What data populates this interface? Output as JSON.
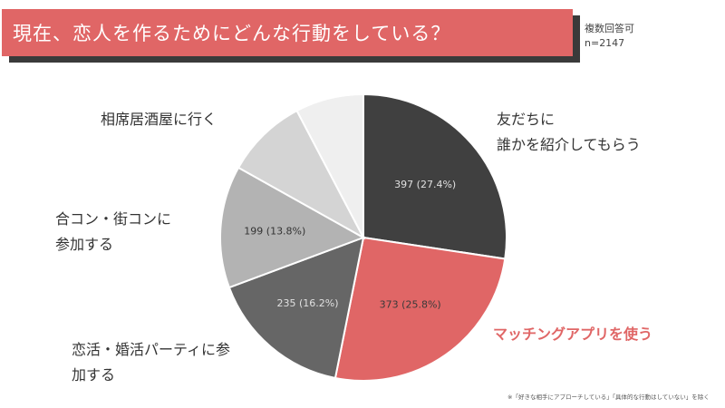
{
  "header": {
    "title": "現在、恋人を作るためにどんな行動をしている？",
    "note_multi": "複数回答可",
    "note_n": "n=2147"
  },
  "footnote": "※「好きな相手にアプローチしている」「具体的な行動はしていない」を除く",
  "colors": {
    "accent": "#e06666",
    "shadow": "#3a3a3a"
  },
  "chart_data": {
    "type": "pie",
    "title": "現在、恋人を作るためにどんな行動をしている？",
    "total": 2147,
    "start": "12 o'clock, clockwise",
    "slices": [
      {
        "category": "友だちに誰かを紹介してもらう",
        "label_lines": [
          "友だちに",
          "誰かを紹介してもらう"
        ],
        "value": 397,
        "percent": 27.4,
        "data_label": "397 (27.4%)",
        "color": "#404040",
        "label_color": "#e0e0e0",
        "highlight": false
      },
      {
        "category": "マッチングアプリを使う",
        "label_lines": [
          "マッチングアプリを使う"
        ],
        "value": 373,
        "percent": 25.8,
        "data_label": "373 (25.8%)",
        "color": "#e06666",
        "label_color": "#3a3a3a",
        "highlight": true
      },
      {
        "category": "恋活・婚活パーティに参加する",
        "label_lines": [
          "恋活・婚活パーティに参",
          "加する"
        ],
        "value": 235,
        "percent": 16.2,
        "data_label": "235 (16.2%)",
        "color": "#666666",
        "label_color": "#e0e0e0",
        "highlight": false
      },
      {
        "category": "合コン・街コンに参加する",
        "label_lines": [
          "合コン・街コンに",
          "参加する"
        ],
        "value": 199,
        "percent": 13.8,
        "data_label": "199 (13.8%)",
        "color": "#b3b3b3",
        "label_color": "#333333",
        "highlight": false
      },
      {
        "category": "相席居酒屋に行く",
        "label_lines": [
          "相席居酒屋に行く"
        ],
        "value": null,
        "percent": null,
        "data_label": "",
        "color": "#d4d4d4",
        "label_color": "#333333",
        "highlight": false
      },
      {
        "category": "",
        "label_lines": [],
        "value": null,
        "percent": null,
        "data_label": "",
        "color": "#efefef",
        "label_color": "#333333",
        "highlight": false
      }
    ]
  }
}
